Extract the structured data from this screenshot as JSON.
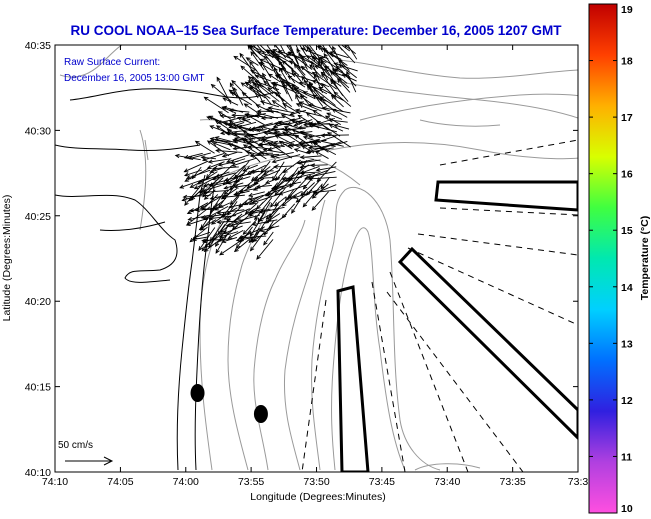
{
  "chart_data": {
    "type": "map",
    "title": "RU COOL  NOAA–15  Sea Surface Temperature:  December 16, 2005 1207 GMT",
    "annotation_lines": [
      "Raw Surface Current:",
      "December 16, 2005 13:00 GMT"
    ],
    "xlabel": "Longitude (Degrees:Minutes)",
    "ylabel": "Latitude (Degrees:Minutes)",
    "x_ticks": [
      {
        "value": -74.1667,
        "label": "74:10"
      },
      {
        "value": -74.0833,
        "label": "74:05"
      },
      {
        "value": -74.0,
        "label": "74:00"
      },
      {
        "value": -73.9167,
        "label": "73:55"
      },
      {
        "value": -73.8333,
        "label": "73:50"
      },
      {
        "value": -73.75,
        "label": "73:45"
      },
      {
        "value": -73.6667,
        "label": "73:40"
      },
      {
        "value": -73.5833,
        "label": "73:35"
      },
      {
        "value": -73.5,
        "label": "73:3"
      }
    ],
    "y_ticks": [
      {
        "value": 40.5833,
        "label": "40:35"
      },
      {
        "value": 40.5,
        "label": "40:30"
      },
      {
        "value": 40.4167,
        "label": "40:25"
      },
      {
        "value": 40.3333,
        "label": "40:20"
      },
      {
        "value": 40.25,
        "label": "40:15"
      },
      {
        "value": 40.1667,
        "label": "40:10"
      }
    ],
    "xlim": [
      -74.1667,
      -73.5
    ],
    "ylim": [
      40.1667,
      40.5833
    ],
    "colorbar": {
      "label": "Temperature (°C)",
      "min": 10,
      "max": 19,
      "ticks": [
        10,
        11,
        12,
        13,
        14,
        15,
        16,
        17,
        18,
        19
      ],
      "colors": [
        "#ff4fe0",
        "#b040e0",
        "#3020e0",
        "#0070ff",
        "#00d0ff",
        "#00e8b0",
        "#40ff40",
        "#d8ff00",
        "#ffb000",
        "#ff4000",
        "#c00000"
      ]
    },
    "scale_arrow_label": "50 cm/s",
    "sample_points": [
      {
        "lon": -73.985,
        "lat": 40.2438
      },
      {
        "lon": -73.9042,
        "lat": 40.2233
      }
    ],
    "colors": {
      "text": "#0000cc",
      "frame": "#000000",
      "coast": "#000000",
      "bathymetry": "#999999"
    }
  }
}
